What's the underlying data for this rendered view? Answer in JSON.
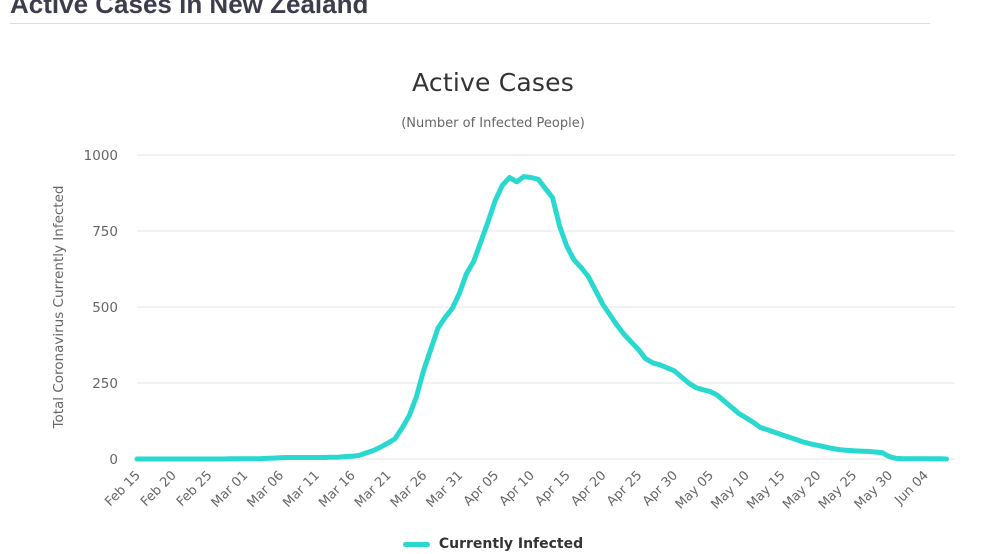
{
  "page": {
    "heading": "Active Cases in New Zealand"
  },
  "chart": {
    "title": "Active Cases",
    "subtitle": "(Number of Infected People)",
    "y_axis_title": "Total Coronavirus Currently Infected",
    "legend_label": "Currently Infected"
  },
  "colors": {
    "line": "#29d8ce",
    "grid": "#e6e6e6",
    "tick_text": "#666666",
    "title_text": "#333333",
    "heading_text": "#3d3d4e",
    "rule": "#dddddd"
  },
  "chart_data": {
    "type": "line",
    "title": "Active Cases",
    "subtitle": "(Number of Infected People)",
    "xlabel": "",
    "ylabel": "Total Coronavirus Currently Infected",
    "legend": [
      "Currently Infected"
    ],
    "legend_position": "bottom",
    "grid": true,
    "ylim": [
      0,
      1000
    ],
    "yticks": [
      0,
      250,
      500,
      750,
      1000
    ],
    "x_tick_every": 5,
    "x": [
      "Feb 15",
      "Feb 16",
      "Feb 17",
      "Feb 18",
      "Feb 19",
      "Feb 20",
      "Feb 21",
      "Feb 22",
      "Feb 23",
      "Feb 24",
      "Feb 25",
      "Feb 26",
      "Feb 27",
      "Feb 28",
      "Feb 29",
      "Mar 01",
      "Mar 02",
      "Mar 03",
      "Mar 04",
      "Mar 05",
      "Mar 06",
      "Mar 07",
      "Mar 08",
      "Mar 09",
      "Mar 10",
      "Mar 11",
      "Mar 12",
      "Mar 13",
      "Mar 14",
      "Mar 15",
      "Mar 16",
      "Mar 17",
      "Mar 18",
      "Mar 19",
      "Mar 20",
      "Mar 21",
      "Mar 22",
      "Mar 23",
      "Mar 24",
      "Mar 25",
      "Mar 26",
      "Mar 27",
      "Mar 28",
      "Mar 29",
      "Mar 30",
      "Mar 31",
      "Apr 01",
      "Apr 02",
      "Apr 03",
      "Apr 04",
      "Apr 05",
      "Apr 06",
      "Apr 07",
      "Apr 08",
      "Apr 09",
      "Apr 10",
      "Apr 11",
      "Apr 12",
      "Apr 13",
      "Apr 14",
      "Apr 15",
      "Apr 16",
      "Apr 17",
      "Apr 18",
      "Apr 19",
      "Apr 20",
      "Apr 21",
      "Apr 22",
      "Apr 23",
      "Apr 24",
      "Apr 25",
      "Apr 26",
      "Apr 27",
      "Apr 28",
      "Apr 29",
      "Apr 30",
      "May 01",
      "May 02",
      "May 03",
      "May 04",
      "May 05",
      "May 06",
      "May 07",
      "May 08",
      "May 09",
      "May 10",
      "May 11",
      "May 12",
      "May 13",
      "May 14",
      "May 15",
      "May 16",
      "May 17",
      "May 18",
      "May 19",
      "May 20",
      "May 21",
      "May 22",
      "May 23",
      "May 24",
      "May 25",
      "May 26",
      "May 27",
      "May 28",
      "May 29",
      "May 30",
      "May 31",
      "Jun 01",
      "Jun 02",
      "Jun 03",
      "Jun 04",
      "Jun 05",
      "Jun 06",
      "Jun 07"
    ],
    "series": [
      {
        "name": "Currently Infected",
        "color": "#29d8ce",
        "values": [
          0,
          0,
          0,
          0,
          0,
          0,
          0,
          0,
          0,
          0,
          0,
          0,
          0,
          1,
          1,
          1,
          1,
          1,
          2,
          3,
          4,
          5,
          5,
          5,
          5,
          5,
          5,
          6,
          6,
          8,
          9,
          12,
          20,
          28,
          39,
          52,
          66,
          102,
          142,
          205,
          290,
          360,
          430,
          465,
          495,
          545,
          610,
          650,
          715,
          780,
          850,
          900,
          926,
          912,
          929,
          926,
          920,
          890,
          860,
          765,
          700,
          655,
          630,
          600,
          555,
          510,
          475,
          440,
          410,
          385,
          360,
          330,
          316,
          310,
          300,
          290,
          270,
          250,
          235,
          228,
          222,
          210,
          190,
          170,
          150,
          136,
          121,
          104,
          96,
          88,
          80,
          72,
          64,
          56,
          50,
          45,
          40,
          35,
          31,
          29,
          27,
          26,
          25,
          23,
          21,
          8,
          2,
          1,
          1,
          1,
          1,
          1,
          1,
          0
        ]
      }
    ]
  }
}
